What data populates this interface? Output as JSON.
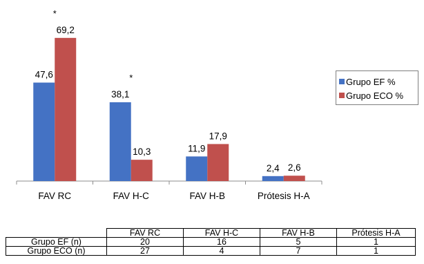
{
  "chart_data": {
    "type": "bar",
    "categories": [
      "FAV RC",
      "FAV H-C",
      "FAV H-B",
      "Prótesis H-A"
    ],
    "series": [
      {
        "name": "Grupo EF %",
        "values": [
          47.6,
          38.1,
          11.9,
          2.4
        ],
        "labels": [
          "47,6",
          "38,1",
          "11,9",
          "2,4"
        ],
        "color": "#4472c4"
      },
      {
        "name": "Grupo ECO %",
        "values": [
          69.2,
          10.3,
          17.9,
          2.6
        ],
        "labels": [
          "69,2",
          "10,3",
          "17,9",
          "2,6"
        ],
        "color": "#c0504d"
      }
    ],
    "annotations": [
      {
        "text": "*",
        "category": 0
      },
      {
        "text": "*",
        "category": 1
      }
    ],
    "title": "",
    "xlabel": "",
    "ylabel": "",
    "ylim": [
      0,
      80
    ],
    "grid": false,
    "legend_position": "right"
  },
  "table": {
    "columns": [
      "FAV RC",
      "FAV H-C",
      "FAV H-B",
      "Prótesis H-A"
    ],
    "rows": [
      {
        "label": "Grupo EF (n)",
        "values": [
          "20",
          "16",
          "5",
          "1"
        ]
      },
      {
        "label": "Grupo ECO (n)",
        "values": [
          "27",
          "4",
          "7",
          "1"
        ]
      }
    ]
  }
}
